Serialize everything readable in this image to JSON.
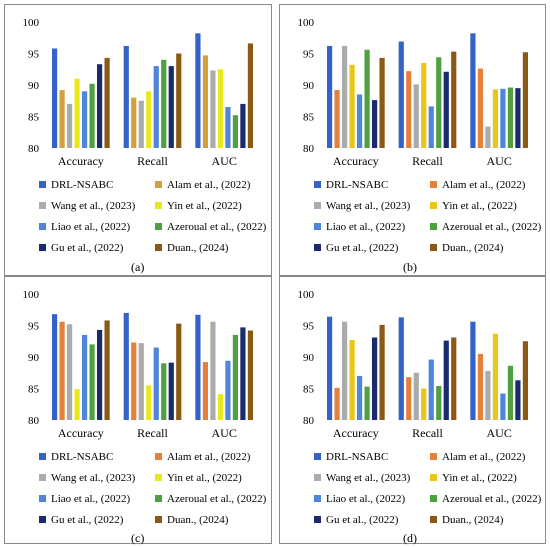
{
  "figure": {
    "panels": [
      {
        "caption": "(a)"
      },
      {
        "caption": "(b)"
      },
      {
        "caption": "(c)"
      },
      {
        "caption": "(d)"
      }
    ]
  },
  "chart_data": [
    {
      "type": "bar",
      "categories": [
        "Accuracy",
        "Recall",
        "AUC"
      ],
      "ylim": [
        80,
        100
      ],
      "yticks": [
        "80",
        "85",
        "90",
        "95",
        "100"
      ],
      "legend_position": "bottom",
      "series": [
        {
          "name": "DRL-NSABC",
          "color": "#3562c9",
          "values": [
            95.8,
            96.2,
            98.2
          ]
        },
        {
          "name": "Alam et al., (2022)",
          "color": "#d4a03d",
          "values": [
            89.2,
            88.0,
            94.7
          ]
        },
        {
          "name": "Wang et al., (2023)",
          "color": "#ababab",
          "values": [
            87.0,
            87.5,
            92.3
          ]
        },
        {
          "name": "Yin et al., (2022)",
          "color": "#e8e81a",
          "values": [
            91.0,
            89.0,
            92.5
          ]
        },
        {
          "name": "Liao et al., (2022)",
          "color": "#4f86d9",
          "values": [
            89.0,
            93.0,
            86.5
          ]
        },
        {
          "name": "Azeroual et al., (2022)",
          "color": "#4ea041",
          "values": [
            90.2,
            94.0,
            85.2
          ]
        },
        {
          "name": "Gu et al., (2022)",
          "color": "#1a2b6b",
          "values": [
            93.3,
            93.0,
            87.0
          ]
        },
        {
          "name": "Duan., (2024)",
          "color": "#8a5a14",
          "values": [
            94.3,
            95.0,
            96.6
          ]
        }
      ]
    },
    {
      "type": "bar",
      "categories": [
        "Accuracy",
        "Recall",
        "AUC"
      ],
      "ylim": [
        80,
        100
      ],
      "yticks": [
        "80",
        "85",
        "90",
        "95",
        "100"
      ],
      "legend_position": "bottom",
      "series": [
        {
          "name": "DRL-NSABC",
          "color": "#3562c9",
          "values": [
            96.2,
            96.9,
            98.2
          ]
        },
        {
          "name": "Alam et al., (2022)",
          "color": "#e67f3a",
          "values": [
            89.2,
            92.2,
            92.6
          ]
        },
        {
          "name": "Wang et al., (2023)",
          "color": "#ababab",
          "values": [
            96.2,
            90.1,
            83.4
          ]
        },
        {
          "name": "Yin et al., (2022)",
          "color": "#e8c61a",
          "values": [
            93.2,
            93.5,
            89.3
          ]
        },
        {
          "name": "Liao et al., (2022)",
          "color": "#4f86d9",
          "values": [
            88.5,
            86.6,
            89.4
          ]
        },
        {
          "name": "Azeroual et al., (2022)",
          "color": "#4ea041",
          "values": [
            95.6,
            94.4,
            89.6
          ]
        },
        {
          "name": "Gu et al., (2022)",
          "color": "#1a2b6b",
          "values": [
            87.6,
            92.1,
            89.5
          ]
        },
        {
          "name": "Duan., (2024)",
          "color": "#8a5a14",
          "values": [
            94.3,
            95.3,
            95.2
          ]
        }
      ]
    },
    {
      "type": "bar",
      "categories": [
        "Accuracy",
        "Recall",
        "AUC"
      ],
      "ylim": [
        80,
        100
      ],
      "yticks": [
        "80",
        "85",
        "90",
        "95",
        "100"
      ],
      "legend_position": "bottom",
      "series": [
        {
          "name": "DRL-NSABC",
          "color": "#3562c9",
          "values": [
            96.8,
            97.0,
            96.7
          ]
        },
        {
          "name": "Alam et al., (2022)",
          "color": "#e67f3a",
          "values": [
            95.6,
            92.3,
            89.2
          ]
        },
        {
          "name": "Wang et al., (2023)",
          "color": "#ababab",
          "values": [
            95.2,
            92.2,
            95.6
          ]
        },
        {
          "name": "Yin et al., (2022)",
          "color": "#e8e81a",
          "values": [
            84.9,
            85.5,
            84.1
          ]
        },
        {
          "name": "Liao et al., (2022)",
          "color": "#4f86d9",
          "values": [
            93.5,
            91.5,
            89.4
          ]
        },
        {
          "name": "Azeroual et al., (2022)",
          "color": "#4ea041",
          "values": [
            92.0,
            89.0,
            93.5
          ]
        },
        {
          "name": "Gu et al., (2022)",
          "color": "#1a2b6b",
          "values": [
            94.3,
            89.1,
            94.7
          ]
        },
        {
          "name": "Duan., (2024)",
          "color": "#8a5a14",
          "values": [
            95.8,
            95.3,
            94.2
          ]
        }
      ]
    },
    {
      "type": "bar",
      "categories": [
        "Accuracy",
        "Recall",
        "AUC"
      ],
      "ylim": [
        80,
        100
      ],
      "yticks": [
        "80",
        "85",
        "90",
        "95",
        "100"
      ],
      "legend_position": "bottom",
      "series": [
        {
          "name": "DRL-NSABC",
          "color": "#3562c9",
          "values": [
            96.4,
            96.3,
            95.6
          ]
        },
        {
          "name": "Alam et al., (2022)",
          "color": "#e67f3a",
          "values": [
            85.1,
            86.8,
            90.5
          ]
        },
        {
          "name": "Wang et al., (2023)",
          "color": "#ababab",
          "values": [
            95.6,
            87.5,
            87.8
          ]
        },
        {
          "name": "Yin et al., (2022)",
          "color": "#e8c61a",
          "values": [
            92.7,
            85.0,
            93.7
          ]
        },
        {
          "name": "Liao et al., (2022)",
          "color": "#4f86d9",
          "values": [
            87.0,
            89.6,
            84.2
          ]
        },
        {
          "name": "Azeroual et al., (2022)",
          "color": "#4ea041",
          "values": [
            85.3,
            85.4,
            88.6
          ]
        },
        {
          "name": "Gu et al., (2022)",
          "color": "#1a2b6b",
          "values": [
            93.1,
            92.6,
            86.3
          ]
        },
        {
          "name": "Duan., (2024)",
          "color": "#8a5a14",
          "values": [
            95.1,
            93.1,
            92.5
          ]
        }
      ]
    }
  ]
}
